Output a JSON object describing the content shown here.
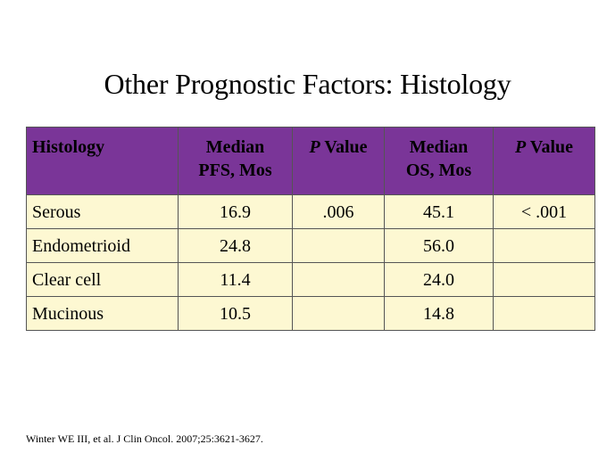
{
  "slide": {
    "title": "Other Prognostic Factors: Histology",
    "citation": "Winter WE III, et al. J Clin Oncol. 2007;25:3621-3627."
  },
  "table": {
    "headers": {
      "histology": "Histology",
      "median_pfs_line1": "Median",
      "median_pfs_line2": "PFS, Mos",
      "p_value_1_italic": "P",
      "p_value_1_rest": " Value",
      "median_os_line1": "Median",
      "median_os_line2": "OS, Mos",
      "p_value_2_italic": "P",
      "p_value_2_rest": " Value"
    },
    "rows": [
      {
        "histology": "Serous",
        "median_pfs": "16.9",
        "p_value_pfs": ".006",
        "median_os": "45.1",
        "p_value_os": "< .001"
      },
      {
        "histology": "Endometrioid",
        "median_pfs": "24.8",
        "p_value_pfs": "",
        "median_os": "56.0",
        "p_value_os": ""
      },
      {
        "histology": "Clear cell",
        "median_pfs": "11.4",
        "p_value_pfs": "",
        "median_os": "24.0",
        "p_value_os": ""
      },
      {
        "histology": "Mucinous",
        "median_pfs": "10.5",
        "p_value_pfs": "",
        "median_os": "14.8",
        "p_value_os": ""
      }
    ]
  },
  "colors": {
    "header_background": "#7a3598",
    "body_background": "#fdf8d2",
    "border": "#555555"
  }
}
